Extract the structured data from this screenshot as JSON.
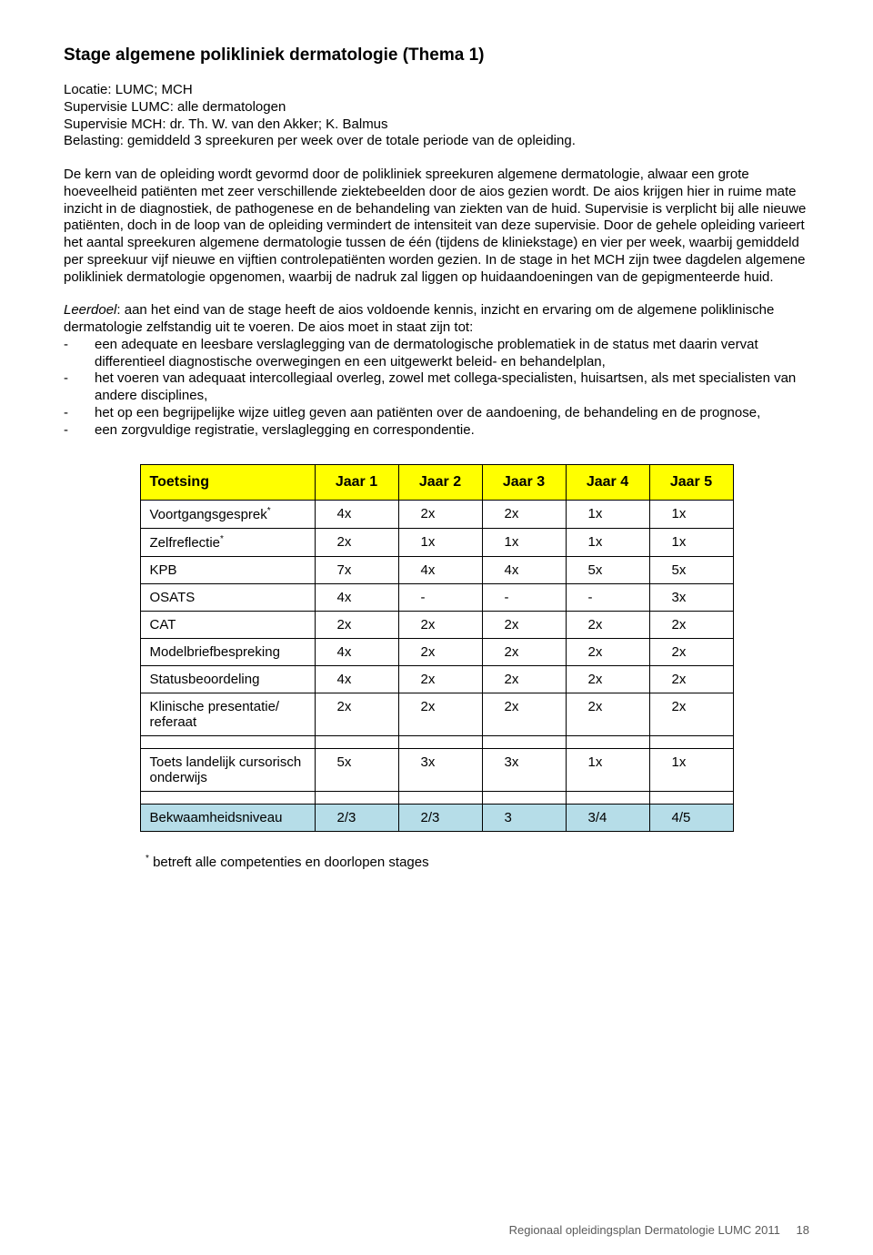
{
  "title": "Stage algemene polikliniek dermatologie (Thema 1)",
  "intro": {
    "line1": "Locatie: LUMC; MCH",
    "line2": "Supervisie LUMC: alle dermatologen",
    "line3": "Supervisie MCH: dr. Th. W. van den Akker; K. Balmus",
    "line4": "Belasting: gemiddeld 3 spreekuren per week over de totale periode van de opleiding."
  },
  "para1": "De kern van de opleiding wordt gevormd door de polikliniek spreekuren algemene dermatologie, alwaar een grote hoeveelheid patiënten met zeer verschillende ziektebeelden door de aios gezien wordt. De aios krijgen hier in ruime mate inzicht in de diagnostiek, de pathogenese en de behandeling van ziekten van de huid. Supervisie is verplicht bij alle nieuwe patiënten, doch in de loop van de opleiding vermindert de intensiteit van deze supervisie. Door de gehele opleiding varieert het aantal spreekuren algemene dermatologie tussen de één (tijdens de kliniekstage) en vier per week, waarbij gemiddeld per spreekuur vijf nieuwe en vijftien controlepatiënten worden gezien. In de stage in het MCH zijn twee dagdelen algemene polikliniek dermatologie opgenomen, waarbij de nadruk zal liggen op huidaandoeningen van de gepigmenteerde huid.",
  "leerdoel_label": "Leerdoel",
  "leerdoel_text": ": aan het eind van de stage heeft de aios voldoende kennis, inzicht en ervaring om de algemene poliklinische dermatologie zelfstandig uit te voeren. De aios moet in staat zijn tot:",
  "bullets": [
    "een adequate en leesbare verslaglegging van de dermatologische problematiek in de status met daarin vervat differentieel diagnostische overwegingen en een uitgewerkt beleid- en behandelplan,",
    "het voeren van adequaat intercollegiaal overleg, zowel met collega-specialisten, huisartsen, als met specialisten van andere disciplines,",
    "het op een begrijpelijke wijze uitleg geven aan patiënten over de aandoening, de behandeling en de prognose,",
    "een zorgvuldige registratie, verslaglegging en correspondentie."
  ],
  "table": {
    "header": [
      "Toetsing",
      "Jaar 1",
      "Jaar 2",
      "Jaar 3",
      "Jaar 4",
      "Jaar 5"
    ],
    "rows": [
      {
        "label": "Voortgangsgesprek",
        "sup": "*",
        "cells": [
          "4x",
          "2x",
          "2x",
          "1x",
          "1x"
        ]
      },
      {
        "label": "Zelfreflectie",
        "sup": "*",
        "cells": [
          "2x",
          "1x",
          "1x",
          "1x",
          "1x"
        ]
      },
      {
        "label": "KPB",
        "cells": [
          "7x",
          "4x",
          "4x",
          "5x",
          "5x"
        ]
      },
      {
        "label": "OSATS",
        "cells": [
          "4x",
          "-",
          "-",
          "-",
          "3x"
        ]
      },
      {
        "label": "CAT",
        "cells": [
          "2x",
          "2x",
          "2x",
          "2x",
          "2x"
        ]
      },
      {
        "label": "Modelbriefbespreking",
        "cells": [
          "4x",
          "2x",
          "2x",
          "2x",
          "2x"
        ]
      },
      {
        "label": "Statusbeoordeling",
        "cells": [
          "4x",
          "2x",
          "2x",
          "2x",
          "2x"
        ]
      },
      {
        "label": "Klinische presentatie/ referaat",
        "cells": [
          "2x",
          "2x",
          "2x",
          "2x",
          "2x"
        ]
      }
    ],
    "row_toets": {
      "label": "Toets landelijk cursorisch onderwijs",
      "cells": [
        "5x",
        "3x",
        "3x",
        "1x",
        "1x"
      ]
    },
    "row_bekwaam": {
      "label": "Bekwaamheidsniveau",
      "cells": [
        "2/3",
        "2/3",
        "3",
        "3/4",
        "4/5"
      ]
    }
  },
  "footnote_marker": "*",
  "footnote_text": " betreft alle competenties en doorlopen stages",
  "footer_text": "Regionaal opleidingsplan Dermatologie LUMC 2011",
  "footer_page": "18",
  "colors": {
    "header_bg": "#ffff00",
    "blue_bg": "#b6dde8",
    "border": "#000000",
    "footer_color": "#5a5a5a"
  }
}
